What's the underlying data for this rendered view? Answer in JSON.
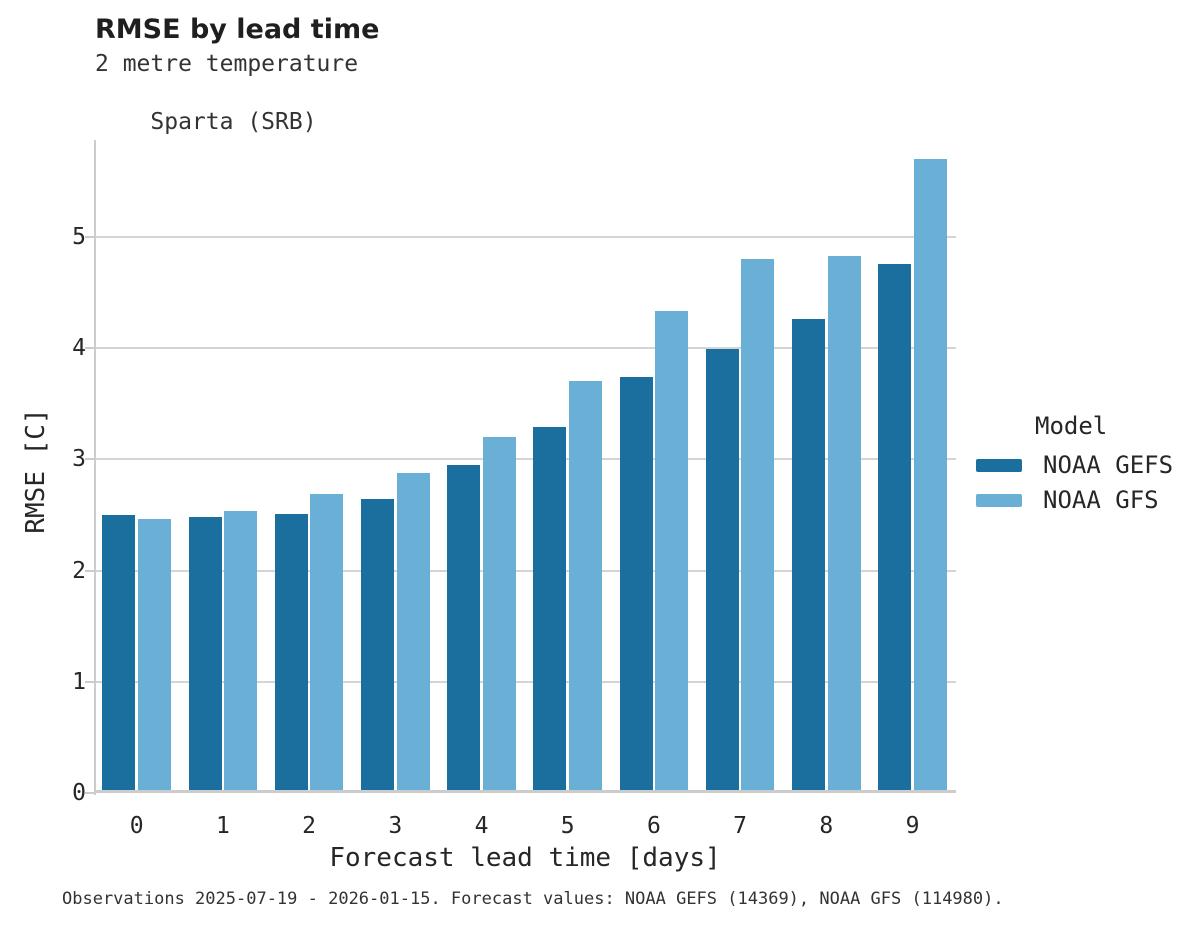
{
  "header": {
    "title": "RMSE by lead time",
    "subtitle_line1": "2 metre temperature",
    "subtitle_line2": "Sparta (SRB)"
  },
  "legend": {
    "title": "Model"
  },
  "footer": {
    "text": "Observations 2025-07-19 - 2026-01-15. Forecast values: NOAA GEFS (14369), NOAA GFS (114980)."
  },
  "chart_data": {
    "type": "bar",
    "title": "RMSE by lead time",
    "subtitle_lines": [
      "2 metre temperature",
      "Sparta (SRB)"
    ],
    "categories": [
      "0",
      "1",
      "2",
      "3",
      "4",
      "5",
      "6",
      "7",
      "8",
      "9"
    ],
    "series": [
      {
        "name": "NOAA GEFS",
        "color": "#1a6f9f",
        "values": [
          2.47,
          2.45,
          2.48,
          2.62,
          2.92,
          3.26,
          3.71,
          3.96,
          4.23,
          4.73
        ]
      },
      {
        "name": "NOAA GFS",
        "color": "#69afd6",
        "values": [
          2.44,
          2.51,
          2.66,
          2.85,
          3.17,
          3.68,
          4.31,
          4.77,
          4.8,
          5.67
        ]
      }
    ],
    "xlabel": "Forecast lead time [days]",
    "ylabel": "RMSE [C]",
    "ylim": [
      0,
      5.87
    ],
    "yticks": [
      0,
      1,
      2,
      3,
      4,
      5
    ],
    "grid": true,
    "legend_title": "Model",
    "legend_position": "right-center",
    "footnote": "Observations 2025-07-19 - 2026-01-15. Forecast values: NOAA GEFS (14369), NOAA GFS (114980)."
  }
}
